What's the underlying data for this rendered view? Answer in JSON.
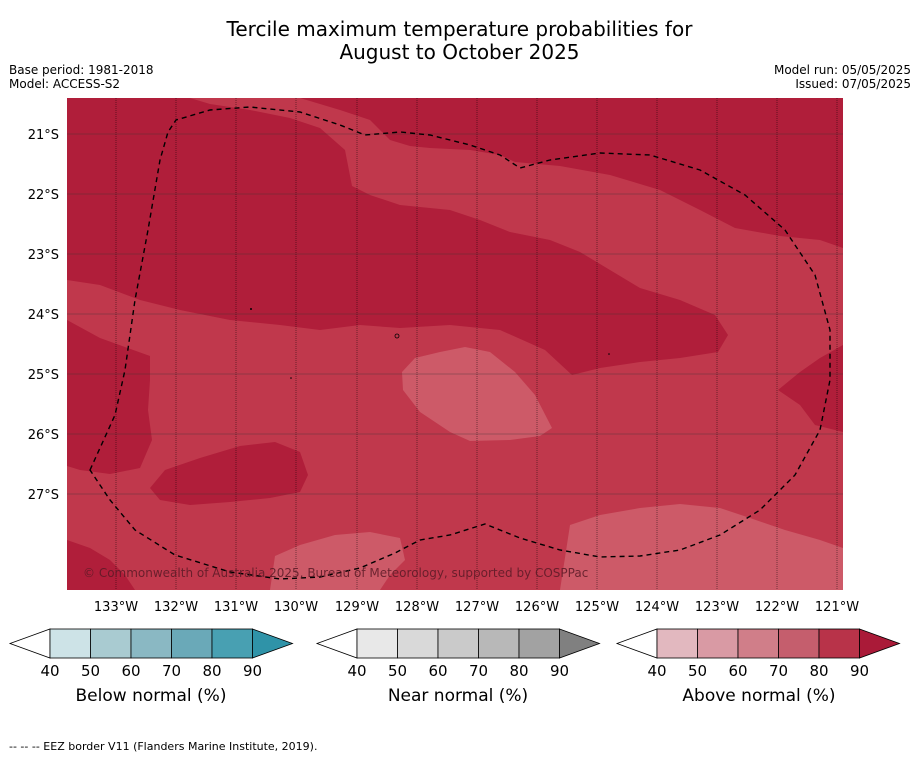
{
  "title_line1": "Tercile maximum temperature probabilities for",
  "title_line2": "August to October 2025",
  "base_period": "Base period: 1981-2018",
  "model": "Model: ACCESS-S2",
  "model_run": "Model run: 05/05/2025",
  "issued": "Issued: 07/05/2025",
  "copyright": "© Commonwealth of Australia 2025, Bureau of Meteorology, supported by COSPPac",
  "footnote": "--  --  -- EEZ border V11 (Flanders Marine Institute, 2019).",
  "map": {
    "lat_ticks": [
      "21°S",
      "22°S",
      "23°S",
      "24°S",
      "25°S",
      "26°S",
      "27°S"
    ],
    "lon_ticks": [
      "133°W",
      "132°W",
      "131°W",
      "130°W",
      "129°W",
      "128°W",
      "127°W",
      "126°W",
      "125°W",
      "124°W",
      "123°W",
      "122°W",
      "121°W"
    ],
    "colors": {
      "above_80": "#b01e3a",
      "above_70": "#c0384c",
      "above_60": "#cd5a68",
      "ocean_bg": "#b01e3a"
    }
  },
  "colorbars": [
    {
      "label": "Below normal (%)",
      "ticks": [
        "40",
        "50",
        "60",
        "70",
        "80",
        "90"
      ],
      "colors": [
        "#ffffff",
        "#cde3e7",
        "#a9cbd1",
        "#8ab8c3",
        "#6aa9b8",
        "#48a0b2",
        "#2f93a8"
      ]
    },
    {
      "label": "Near normal (%)",
      "ticks": [
        "40",
        "50",
        "60",
        "70",
        "80",
        "90"
      ],
      "colors": [
        "#ffffff",
        "#e8e8e8",
        "#d9d9d9",
        "#cacaca",
        "#b8b8b8",
        "#a2a2a2",
        "#808080"
      ]
    },
    {
      "label": "Above normal (%)",
      "ticks": [
        "40",
        "50",
        "60",
        "70",
        "80",
        "90"
      ],
      "colors": [
        "#ffffff",
        "#e2b8bf",
        "#d99aa4",
        "#d07e89",
        "#c55e6d",
        "#b83349",
        "#aa1a38"
      ]
    }
  ],
  "chart_data": {
    "type": "heatmap",
    "title": "Tercile maximum temperature probabilities for August to October 2025",
    "x_axis": {
      "ticks": [
        "133°W",
        "132°W",
        "131°W",
        "130°W",
        "129°W",
        "128°W",
        "127°W",
        "126°W",
        "125°W",
        "124°W",
        "123°W",
        "122°W",
        "121°W"
      ]
    },
    "y_axis": {
      "ticks": [
        "21°S",
        "22°S",
        "23°S",
        "24°S",
        "25°S",
        "26°S",
        "27°S"
      ]
    },
    "legend": [
      {
        "name": "Below normal (%)",
        "levels": [
          40,
          50,
          60,
          70,
          80,
          90
        ]
      },
      {
        "name": "Near normal (%)",
        "levels": [
          40,
          50,
          60,
          70,
          80,
          90
        ]
      },
      {
        "name": "Above normal (%)",
        "levels": [
          40,
          50,
          60,
          70,
          80,
          90
        ]
      }
    ],
    "grid": true
  }
}
